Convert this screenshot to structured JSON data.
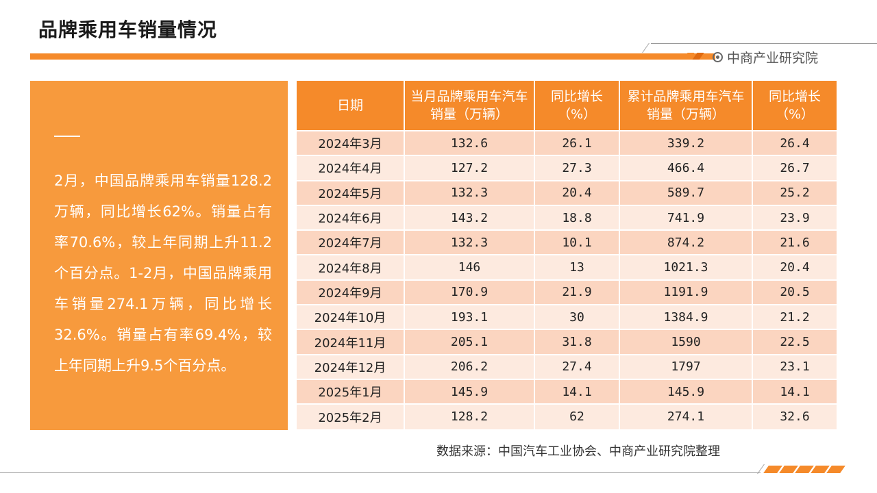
{
  "title": "品牌乘用车销量情况",
  "brand": "中商产业研究院",
  "summary": "2月，中国品牌乘用车销量128.2万辆，同比增长62%。销量占有率70.6%，较上年同期上升11.2个百分点。1-2月，中国品牌乘用车销量274.1万辆，同比增长32.6%。销量占有率69.4%，较上年同期上升9.5个百分点。",
  "table": {
    "headers": [
      "日期",
      "当月品牌乘用车汽车销量（万辆）",
      "同比增长（%）",
      "累计品牌乘用车汽车销量（万辆）",
      "同比增长（%）"
    ],
    "rows": [
      [
        "2024年3月",
        "132.6",
        "26.1",
        "339.2",
        "26.4"
      ],
      [
        "2024年4月",
        "127.2",
        "27.3",
        "466.4",
        "26.7"
      ],
      [
        "2024年5月",
        "132.3",
        "20.4",
        "589.7",
        "25.2"
      ],
      [
        "2024年6月",
        "143.2",
        "18.8",
        "741.9",
        "23.9"
      ],
      [
        "2024年7月",
        "132.3",
        "10.1",
        "874.2",
        "21.6"
      ],
      [
        "2024年8月",
        "146",
        "13",
        "1021.3",
        "20.4"
      ],
      [
        "2024年9月",
        "170.9",
        "21.9",
        "1191.9",
        "20.5"
      ],
      [
        "2024年10月",
        "193.1",
        "30",
        "1384.9",
        "21.2"
      ],
      [
        "2024年11月",
        "205.1",
        "31.8",
        "1590",
        "22.5"
      ],
      [
        "2024年12月",
        "206.2",
        "27.4",
        "1797",
        "23.1"
      ],
      [
        "2025年1月",
        "145.9",
        "14.1",
        "145.9",
        "14.1"
      ],
      [
        "2025年2月",
        "128.2",
        "62",
        "274.1",
        "32.6"
      ]
    ]
  },
  "source": "数据来源：中国汽车工业协会、中商产业研究院整理",
  "colors": {
    "accent": "#f58a2a",
    "panel": "#f79a3d",
    "row_odd": "#fbd5c0",
    "row_even": "#fdeadf"
  }
}
